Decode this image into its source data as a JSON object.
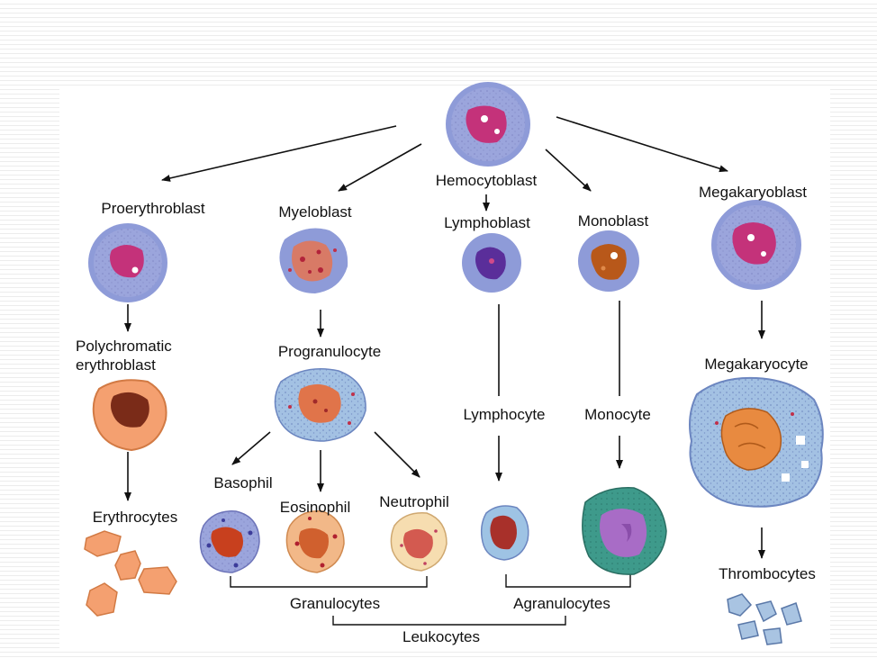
{
  "diagram": {
    "labels": {
      "hemocytoblast": "Hemocytoblast",
      "proerythroblast": "Proerythroblast",
      "myeloblast": "Myeloblast",
      "lymphoblast": "Lymphoblast",
      "monoblast": "Monoblast",
      "megakaryoblast": "Megakaryoblast",
      "polychromatic_line1": "Polychromatic",
      "polychromatic_line2": "erythroblast",
      "progranulocyte": "Progranulocyte",
      "lymphocyte": "Lymphocyte",
      "monocyte": "Monocyte",
      "megakaryocyte": "Megakaryocyte",
      "basophil": "Basophil",
      "eosinophil": "Eosinophil",
      "neutrophil": "Neutrophil",
      "erythrocytes": "Erythrocytes",
      "thrombocytes": "Thrombocytes",
      "granulocytes": "Granulocytes",
      "agranulocytes": "Agranulocytes",
      "leukocytes": "Leukocytes"
    },
    "colors": {
      "blast_cytoplasm": "#9aa6de",
      "blast_nucleus": "#c2357a",
      "progenitor_cytoplasm": "#9ec3e4",
      "erythro_orange": "#f4a070",
      "eosin_tan": "#f2c49a",
      "monocyte_teal": "#3f9a8c",
      "monocyte_nucleus": "#a86cc6",
      "thrombo_blue": "#a9c4e2"
    }
  }
}
